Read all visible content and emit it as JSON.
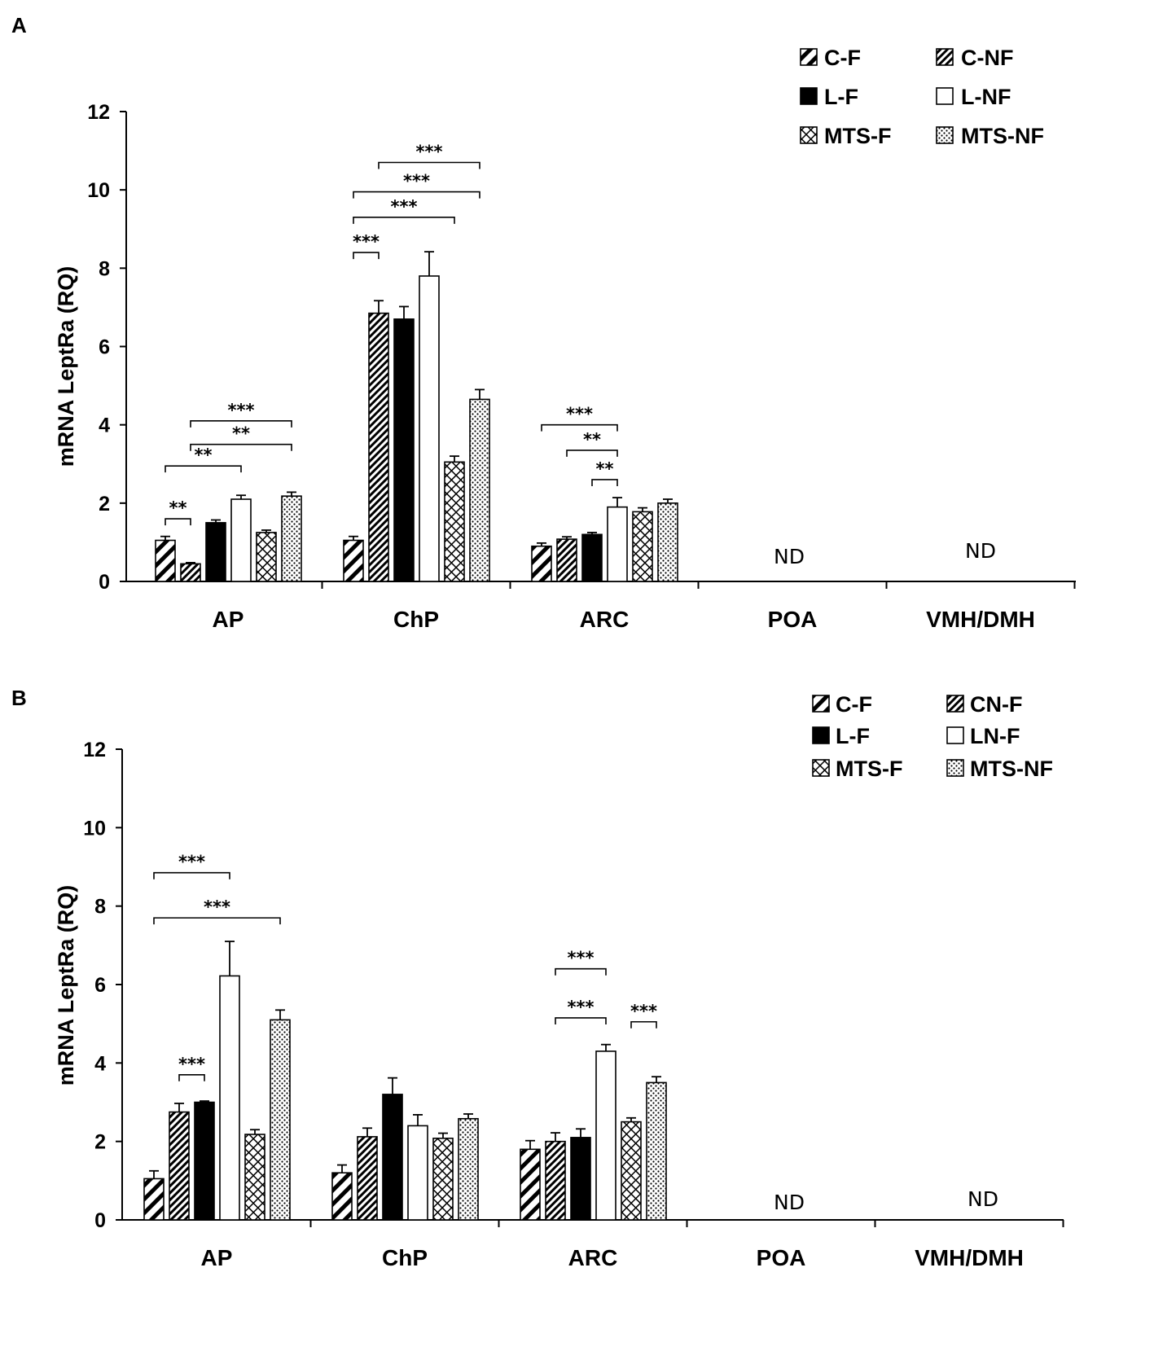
{
  "chart_data": [
    {
      "type": "bar",
      "panel": "A",
      "ylabel": "mRNA LeptRa (RQ)",
      "ylim": [
        0,
        12
      ],
      "yticks": [
        "0",
        "2",
        "4",
        "6",
        "8",
        "10",
        "12"
      ],
      "categories": [
        "AP",
        "ChP",
        "ARC",
        "POA",
        "VMH/DMH"
      ],
      "nd_labels": [
        {
          "category_index": 3,
          "text": "ND"
        },
        {
          "category_index": 4,
          "text": "ND"
        }
      ],
      "series": [
        {
          "name": "C-F",
          "pattern": "diag-wide",
          "values": [
            1.05,
            1.05,
            0.9,
            null,
            null
          ],
          "errors": [
            0.1,
            0.1,
            0.08,
            null,
            null
          ]
        },
        {
          "name": "C-NF",
          "pattern": "diag-dense",
          "values": [
            0.45,
            6.85,
            1.08,
            null,
            null
          ],
          "errors": [
            0.03,
            0.32,
            0.06,
            null,
            null
          ]
        },
        {
          "name": "L-F",
          "pattern": "solid",
          "values": [
            1.5,
            6.7,
            1.2,
            null,
            null
          ],
          "errors": [
            0.07,
            0.32,
            0.05,
            null,
            null
          ]
        },
        {
          "name": "L-NF",
          "pattern": "empty",
          "values": [
            2.1,
            7.8,
            1.9,
            null,
            null
          ],
          "errors": [
            0.1,
            0.62,
            0.24,
            null,
            null
          ]
        },
        {
          "name": "MTS-F",
          "pattern": "crosshatch",
          "values": [
            1.25,
            3.05,
            1.78,
            null,
            null
          ],
          "errors": [
            0.06,
            0.15,
            0.1,
            null,
            null
          ]
        },
        {
          "name": "MTS-NF",
          "pattern": "dots",
          "values": [
            2.18,
            4.65,
            2.0,
            null,
            null
          ],
          "errors": [
            0.1,
            0.25,
            0.1,
            null,
            null
          ]
        }
      ],
      "significance": [
        {
          "category_index": 0,
          "from": 0,
          "to": 1,
          "y": 1.6,
          "text": "**"
        },
        {
          "category_index": 0,
          "from": 0,
          "to": 3,
          "y": 2.95,
          "text": "**"
        },
        {
          "category_index": 0,
          "from": 1,
          "to": 5,
          "y": 3.5,
          "text": "**"
        },
        {
          "category_index": 0,
          "from": 1,
          "to": 5,
          "y": 4.1,
          "text": "***"
        },
        {
          "category_index": 1,
          "from": 0,
          "to": 1,
          "y": 8.4,
          "text": "***"
        },
        {
          "category_index": 1,
          "from": 0,
          "to": 4,
          "y": 9.3,
          "text": "***"
        },
        {
          "category_index": 1,
          "from": 0,
          "to": 5,
          "y": 9.95,
          "text": "***"
        },
        {
          "category_index": 1,
          "from": 1,
          "to": 5,
          "y": 10.7,
          "text": "***"
        },
        {
          "category_index": 2,
          "from": 2,
          "to": 3,
          "y": 2.6,
          "text": "**"
        },
        {
          "category_index": 2,
          "from": 1,
          "to": 3,
          "y": 3.35,
          "text": "**"
        },
        {
          "category_index": 2,
          "from": 0,
          "to": 3,
          "y": 4.0,
          "text": "***"
        }
      ]
    },
    {
      "type": "bar",
      "panel": "B",
      "ylabel": "mRNA LeptRa (RQ)",
      "ylim": [
        0,
        12
      ],
      "yticks": [
        "0",
        "2",
        "4",
        "6",
        "8",
        "10",
        "12"
      ],
      "categories": [
        "AP",
        "ChP",
        "ARC",
        "POA",
        "VMH/DMH"
      ],
      "nd_labels": [
        {
          "category_index": 3,
          "text": "ND"
        },
        {
          "category_index": 4,
          "text": "ND"
        }
      ],
      "series": [
        {
          "name": "C-F",
          "pattern": "diag-wide",
          "values": [
            1.05,
            1.2,
            1.8,
            null,
            null
          ],
          "errors": [
            0.2,
            0.2,
            0.22,
            null,
            null
          ]
        },
        {
          "name": "CN-F",
          "pattern": "diag-dense",
          "values": [
            2.75,
            2.12,
            2.0,
            null,
            null
          ],
          "errors": [
            0.22,
            0.22,
            0.22,
            null,
            null
          ]
        },
        {
          "name": "L-F",
          "pattern": "solid",
          "values": [
            3.0,
            3.2,
            2.1,
            null,
            null
          ],
          "errors": [
            0.03,
            0.42,
            0.22,
            null,
            null
          ]
        },
        {
          "name": "LN-F",
          "pattern": "empty",
          "values": [
            6.22,
            2.4,
            4.3,
            null,
            null
          ],
          "errors": [
            0.88,
            0.28,
            0.17,
            null,
            null
          ]
        },
        {
          "name": "MTS-F",
          "pattern": "crosshatch",
          "values": [
            2.18,
            2.08,
            2.5,
            null,
            null
          ],
          "errors": [
            0.12,
            0.13,
            0.1,
            null,
            null
          ]
        },
        {
          "name": "MTS-NF",
          "pattern": "dots",
          "values": [
            5.1,
            2.58,
            3.5,
            null,
            null
          ],
          "errors": [
            0.25,
            0.12,
            0.15,
            null,
            null
          ]
        }
      ],
      "significance": [
        {
          "category_index": 0,
          "from": 0,
          "to": 3,
          "y": 8.85,
          "text": "***"
        },
        {
          "category_index": 0,
          "from": 0,
          "to": 5,
          "y": 7.7,
          "text": "***"
        },
        {
          "category_index": 0,
          "from": 1,
          "to": 1,
          "y": 3.7,
          "text": "***",
          "single": true
        },
        {
          "category_index": 2,
          "from": 1,
          "to": 3,
          "y": 6.4,
          "text": "***"
        },
        {
          "category_index": 2,
          "from": 1,
          "to": 3,
          "y": 5.15,
          "text": "***"
        },
        {
          "category_index": 2,
          "from": 4,
          "to": 5,
          "y": 5.05,
          "text": "***"
        }
      ]
    }
  ],
  "legends": [
    {
      "panel": "A",
      "entries": [
        "C-F",
        "C-NF",
        "L-F",
        "L-NF",
        "MTS-F",
        "MTS-NF"
      ]
    },
    {
      "panel": "B",
      "entries": [
        "C-F",
        "CN-F",
        "L-F",
        "LN-F",
        "MTS-F",
        "MTS-NF"
      ]
    }
  ]
}
